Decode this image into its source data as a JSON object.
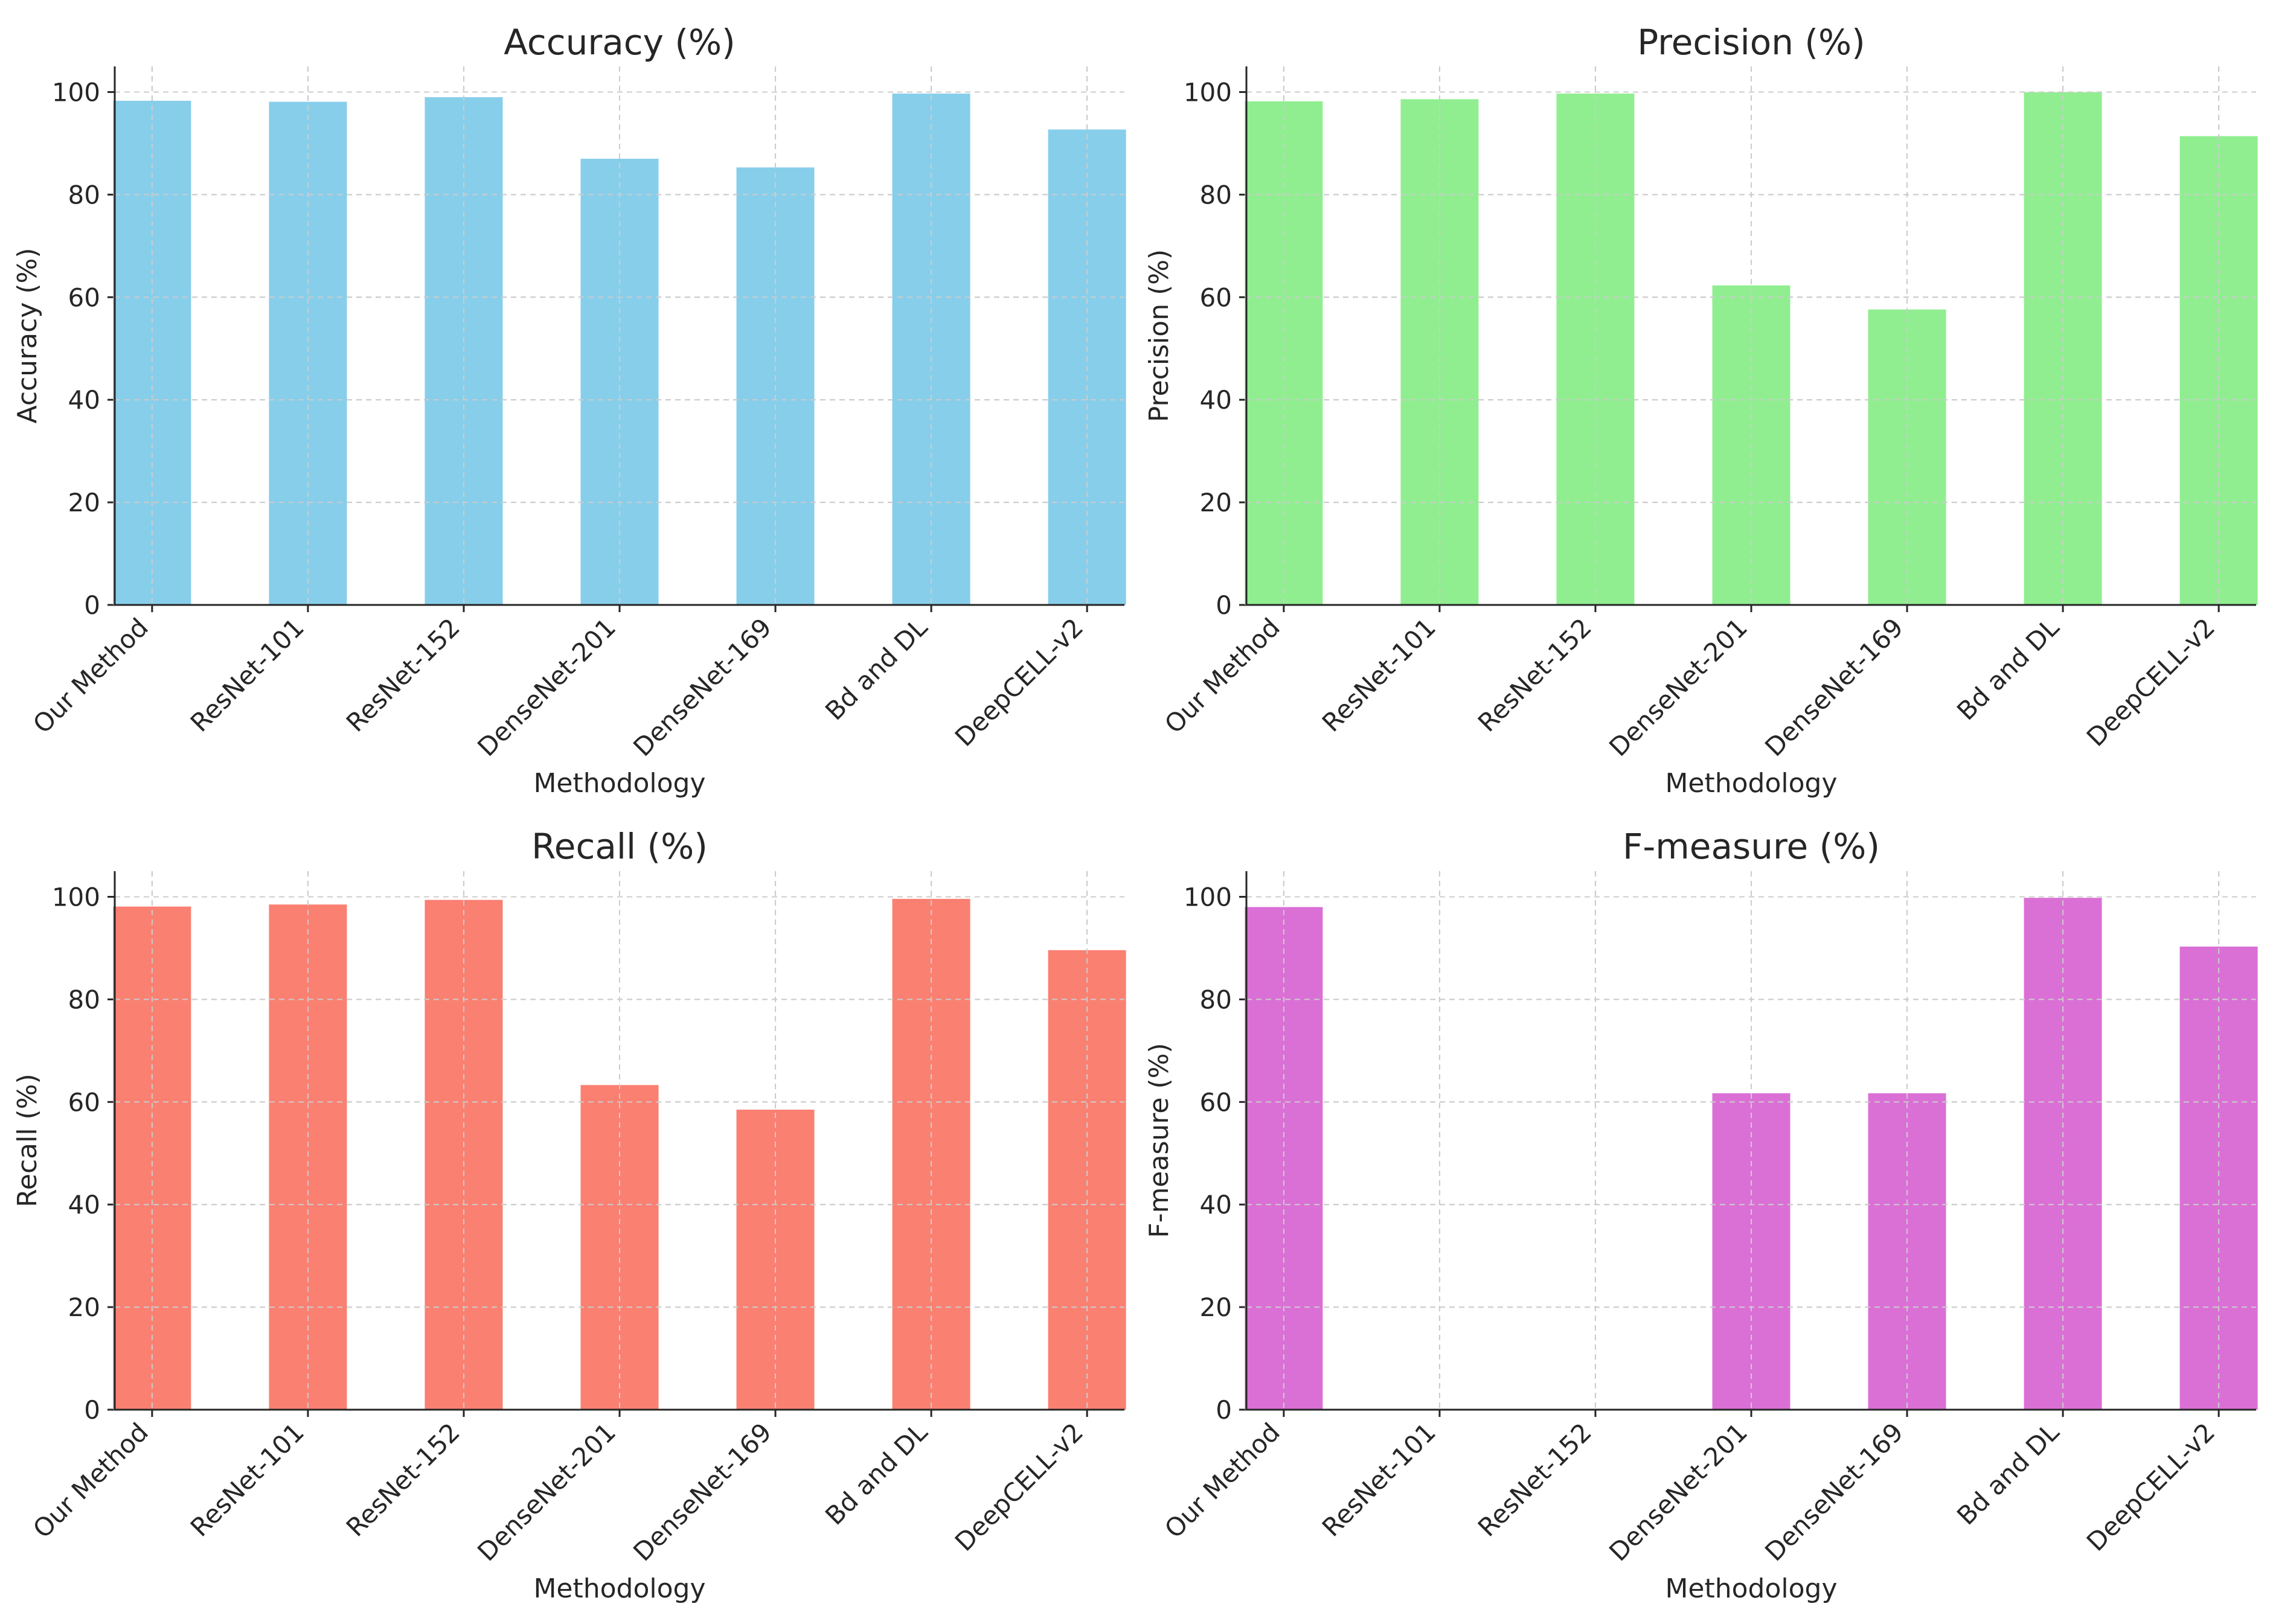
{
  "chart_data": [
    {
      "type": "bar",
      "title": "Accuracy (%)",
      "xlabel": "Methodology",
      "ylabel": "Accuracy (%)",
      "ylim": [
        0,
        105
      ],
      "yticks": [
        0,
        20,
        40,
        60,
        80,
        100
      ],
      "grid": true,
      "color": "#87CEEB",
      "categories": [
        "Our Method",
        "ResNet-101",
        "ResNet-152",
        "DenseNet-201",
        "DenseNet-169",
        "Bd and DL",
        "DeepCELL-v2"
      ],
      "values": [
        98.3,
        98.1,
        99.0,
        87.0,
        85.3,
        99.7,
        92.7
      ]
    },
    {
      "type": "bar",
      "title": "Precision (%)",
      "xlabel": "Methodology",
      "ylabel": "Precision (%)",
      "ylim": [
        0,
        105
      ],
      "yticks": [
        0,
        20,
        40,
        60,
        80,
        100
      ],
      "grid": true,
      "color": "#90EE90",
      "categories": [
        "Our Method",
        "ResNet-101",
        "ResNet-152",
        "DenseNet-201",
        "DenseNet-169",
        "Bd and DL",
        "DeepCELL-v2"
      ],
      "values": [
        98.2,
        98.6,
        99.7,
        62.3,
        57.6,
        100.0,
        91.4
      ]
    },
    {
      "type": "bar",
      "title": "Recall (%)",
      "xlabel": "Methodology",
      "ylabel": "Recall (%)",
      "ylim": [
        0,
        105
      ],
      "yticks": [
        0,
        20,
        40,
        60,
        80,
        100
      ],
      "grid": true,
      "color": "#FA8072",
      "categories": [
        "Our Method",
        "ResNet-101",
        "ResNet-152",
        "DenseNet-201",
        "DenseNet-169",
        "Bd and DL",
        "DeepCELL-v2"
      ],
      "values": [
        98.1,
        98.5,
        99.4,
        63.3,
        58.5,
        99.6,
        89.6
      ]
    },
    {
      "type": "bar",
      "title": "F-measure (%)",
      "xlabel": "Methodology",
      "ylabel": "F-measure (%)",
      "ylim": [
        0,
        105
      ],
      "yticks": [
        0,
        20,
        40,
        60,
        80,
        100
      ],
      "grid": true,
      "color": "#DA70D6",
      "categories": [
        "Our Method",
        "ResNet-101",
        "ResNet-152",
        "DenseNet-201",
        "DenseNet-169",
        "Bd and DL",
        "DeepCELL-v2"
      ],
      "values": [
        98.0,
        0,
        0,
        61.7,
        61.7,
        99.8,
        90.3
      ]
    }
  ]
}
